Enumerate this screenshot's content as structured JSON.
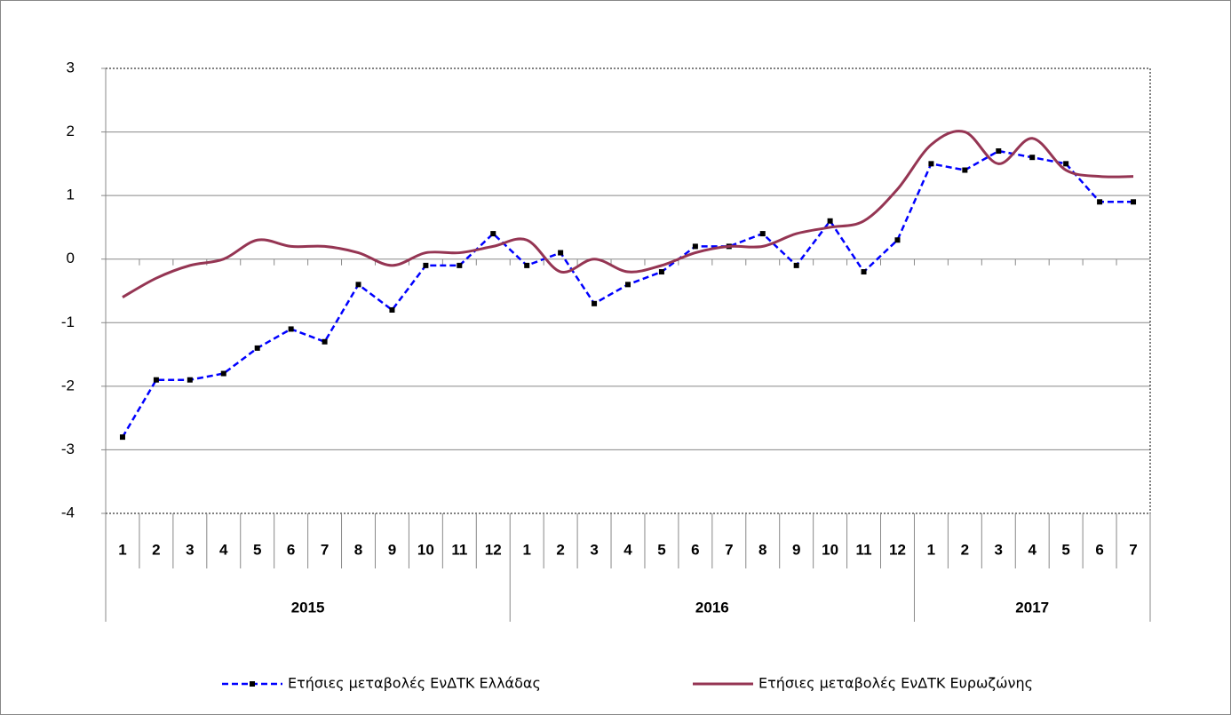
{
  "chart_data": {
    "type": "line",
    "category_groups": [
      {
        "label": "2015",
        "categories": [
          "1",
          "2",
          "3",
          "4",
          "5",
          "6",
          "7",
          "8",
          "9",
          "10",
          "11",
          "12"
        ]
      },
      {
        "label": "2016",
        "categories": [
          "1",
          "2",
          "3",
          "4",
          "5",
          "6",
          "7",
          "8",
          "9",
          "10",
          "11",
          "12"
        ]
      },
      {
        "label": "2017",
        "categories": [
          "1",
          "2",
          "3",
          "4",
          "5",
          "6",
          "7"
        ]
      }
    ],
    "series": [
      {
        "name": "Ετήσιες μεταβολές ΕνΔΤΚ Ελλάδας",
        "color": "#0000ff",
        "style": "dashed",
        "marker": "square",
        "values": [
          -2.8,
          -1.9,
          -1.9,
          -1.8,
          -1.4,
          -1.1,
          -1.3,
          -0.4,
          -0.8,
          -0.1,
          -0.1,
          0.4,
          -0.1,
          0.1,
          -0.7,
          -0.4,
          -0.2,
          0.2,
          0.2,
          0.4,
          -0.1,
          0.6,
          -0.2,
          0.3,
          1.5,
          1.4,
          1.7,
          1.6,
          1.5,
          0.9,
          0.9
        ]
      },
      {
        "name": "Ετήσιες μεταβολές ΕνΔΤΚ Ευρωζώνης",
        "color": "#953553",
        "style": "smooth",
        "values": [
          -0.6,
          -0.3,
          -0.1,
          0.0,
          0.3,
          0.2,
          0.2,
          0.1,
          -0.1,
          0.1,
          0.1,
          0.2,
          0.3,
          -0.2,
          0.0,
          -0.2,
          -0.1,
          0.1,
          0.2,
          0.2,
          0.4,
          0.5,
          0.6,
          1.1,
          1.8,
          2.0,
          1.5,
          1.9,
          1.4,
          1.3,
          1.3
        ]
      }
    ],
    "ylim": [
      -4,
      3
    ],
    "yticks": [
      -4,
      -3,
      -2,
      -1,
      0,
      1,
      2,
      3
    ],
    "grid": true
  }
}
